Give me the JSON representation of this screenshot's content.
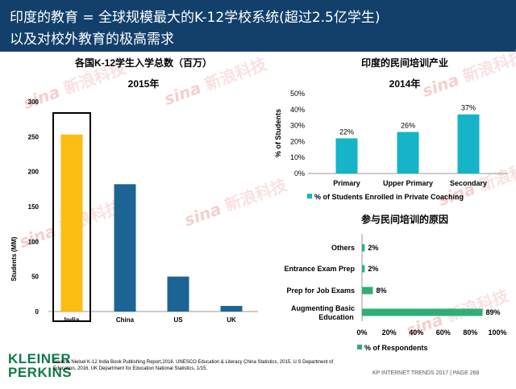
{
  "header": {
    "title_line1": "印度的教育 = 全球规模最大的K-12学校系统(超过2.5亿学生)",
    "title_line2": "以及对校外教育的极高需求"
  },
  "footer": {
    "logo_line1": "KLEINER",
    "logo_line2": "PERKINS",
    "source": "Source: Nielsel K-12 India Book Publishing Report,2016. UNESCO Education & Literacy China Statistics, 2015. U.S Department of Education, 2016. UK Department for Education National Statistics, 1/15.",
    "page": "KP INTERNET TRENDS 2017  |  PAGE 268"
  },
  "watermark": {
    "brand": "sina",
    "text": "新浪科技"
  },
  "colors": {
    "header_bg": "#12406b",
    "india_bar": "#fbbd11",
    "other_bars": "#1d6496",
    "private_coaching": "#16b4c8",
    "respondents": "#2fae77",
    "logo": "#0f7a4a"
  },
  "chart_data": [
    {
      "type": "bar",
      "title": "各国K-12学生入学总数（百万）",
      "subtitle": "2015年",
      "ylabel": "Students (MM)",
      "categories": [
        "India",
        "China",
        "US",
        "UK"
      ],
      "values": [
        253,
        182,
        50,
        8
      ],
      "highlight": "India",
      "ylim": [
        0,
        300
      ],
      "yticks": [
        0,
        50,
        100,
        150,
        200,
        250,
        300
      ],
      "grid": false
    },
    {
      "type": "bar",
      "title": "印度的民间培训产业",
      "subtitle": "2014年",
      "ylabel": "% of Students",
      "categories": [
        "Primary",
        "Upper Primary",
        "Secondary"
      ],
      "values": [
        22,
        26,
        37
      ],
      "data_labels": [
        "22%",
        "26%",
        "37%"
      ],
      "ylim": [
        0,
        50
      ],
      "yticks": [
        "0%",
        "10%",
        "20%",
        "30%",
        "40%",
        "50%"
      ],
      "legend": "% of Students Enrolled in Private Coaching",
      "legend_position": "bottom",
      "grid": false
    },
    {
      "type": "bar",
      "orientation": "horizontal",
      "title": "参与民间培训的原因",
      "categories": [
        "Others",
        "Entrance Exam Prep",
        "Prep for Job Exams",
        "Augmenting Basic Education"
      ],
      "values": [
        2,
        2,
        8,
        89
      ],
      "data_labels": [
        "2%",
        "2%",
        "8%",
        "89%"
      ],
      "xlim": [
        0,
        100
      ],
      "xticks": [
        "0%",
        "20%",
        "40%",
        "60%",
        "80%",
        "100%"
      ],
      "legend": "% of Respondents",
      "legend_position": "bottom",
      "grid": false
    }
  ]
}
